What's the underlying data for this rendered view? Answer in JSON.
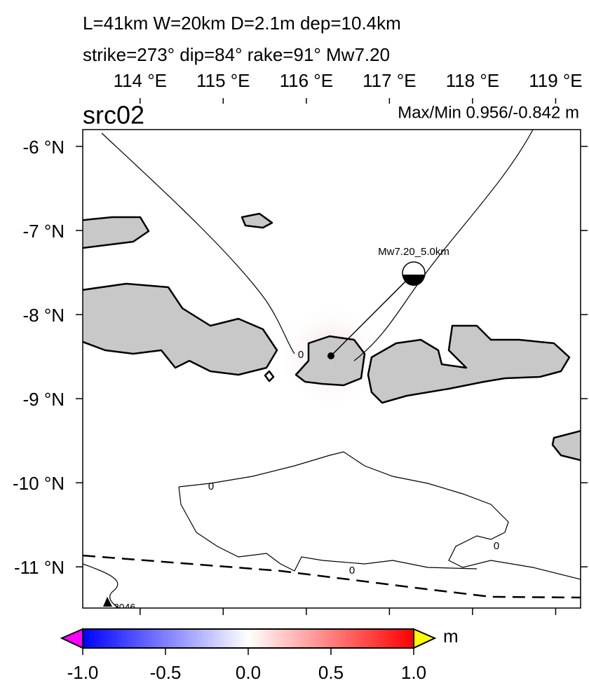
{
  "header": {
    "line1": "L=41km W=20km D=2.1m dep=10.4km",
    "line2": "strike=273° dip=84° rake=91° Mw7.20"
  },
  "panel": {
    "label": "src02",
    "max_min": "Max/Min 0.956/-0.842 m"
  },
  "map": {
    "xlim": [
      113.31,
      119.3
    ],
    "ylim": [
      -11.49,
      -5.8
    ],
    "xticks": [
      {
        "value": 114,
        "label": "114 °E"
      },
      {
        "value": 115,
        "label": "115 °E"
      },
      {
        "value": 116,
        "label": "116 °E"
      },
      {
        "value": 117,
        "label": "117 °E"
      },
      {
        "value": 118,
        "label": "118 °E"
      },
      {
        "value": 119,
        "label": "119 °E"
      }
    ],
    "yticks": [
      {
        "value": -6,
        "label": "-6 °N"
      },
      {
        "value": -7,
        "label": "-7 °N"
      },
      {
        "value": -8,
        "label": "-8 °N"
      },
      {
        "value": -9,
        "label": "-9 °N"
      },
      {
        "value": -10,
        "label": "-10 °N"
      },
      {
        "value": -11,
        "label": "-11 °N"
      }
    ]
  },
  "source": {
    "label": "Mw7.20_5.0km"
  },
  "contour_labels": [
    "0",
    "0",
    "0",
    "0"
  ],
  "station": {
    "label": "3046"
  },
  "colorbar": {
    "lim": [
      -1,
      1
    ],
    "unit": "m",
    "ticks": [
      {
        "value": -1,
        "label": "-1.0"
      },
      {
        "value": -0.5,
        "label": "-0.5"
      },
      {
        "value": 0,
        "label": "0.0"
      },
      {
        "value": 0.5,
        "label": "0.5"
      },
      {
        "value": 1,
        "label": "1.0"
      }
    ]
  }
}
